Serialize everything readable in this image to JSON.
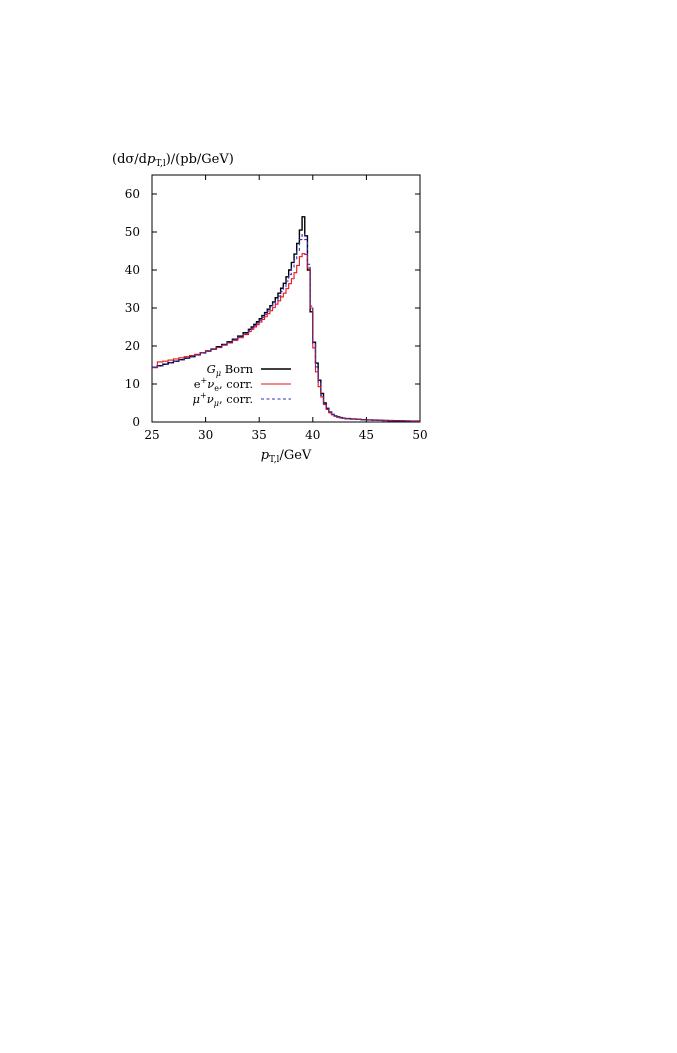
{
  "chart_data": {
    "type": "line",
    "title": "",
    "ylabel": {
      "base": "(dσ/d",
      "var": "p",
      "sub": "T,l",
      "tail": ")/(pb/GeV)"
    },
    "xlabel": {
      "var": "p",
      "sub": "T,l",
      "tail": "/GeV"
    },
    "xlim": [
      25,
      50
    ],
    "ylim": [
      0,
      65
    ],
    "x_ticks": [
      25,
      30,
      35,
      40,
      45,
      50
    ],
    "y_ticks": [
      0,
      10,
      20,
      30,
      40,
      50,
      60
    ],
    "grid": false,
    "legend_position": "lower-left",
    "bin_edges": [
      25.0,
      25.5,
      26.0,
      26.5,
      27.0,
      27.5,
      28.0,
      28.5,
      29.0,
      29.5,
      30.0,
      30.5,
      31.0,
      31.5,
      32.0,
      32.5,
      33.0,
      33.5,
      34.0,
      34.25,
      34.5,
      34.75,
      35.0,
      35.25,
      35.5,
      35.75,
      36.0,
      36.25,
      36.5,
      36.75,
      37.0,
      37.25,
      37.5,
      37.75,
      38.0,
      38.25,
      38.5,
      38.75,
      39.0,
      39.25,
      39.5,
      39.75,
      40.0,
      40.25,
      40.5,
      40.75,
      41.0,
      41.25,
      41.5,
      41.75,
      42.0,
      42.25,
      42.5,
      42.75,
      43.0,
      43.5,
      44.0,
      44.5,
      45.0,
      45.5,
      46.0,
      46.5,
      47.0,
      47.5,
      48.0,
      48.5,
      49.0,
      49.5,
      50.0
    ],
    "series": [
      {
        "legend": {
          "var": "G",
          "sub": "μ",
          "tail": " Born"
        },
        "color": "#000000",
        "dash": "solid",
        "values": [
          14.4,
          14.8,
          15.2,
          15.6,
          16.0,
          16.4,
          16.8,
          17.2,
          17.7,
          18.2,
          18.7,
          19.2,
          19.8,
          20.4,
          21.1,
          21.8,
          22.6,
          23.5,
          24.4,
          25.0,
          25.7,
          26.4,
          27.2,
          28.0,
          28.8,
          29.7,
          30.6,
          31.6,
          32.7,
          33.9,
          35.2,
          36.5,
          38.2,
          40.0,
          42.0,
          44.2,
          47.0,
          50.5,
          54.0,
          49.0,
          40.0,
          29.0,
          21.0,
          15.5,
          11.0,
          7.5,
          5.0,
          3.6,
          2.6,
          2.0,
          1.6,
          1.35,
          1.15,
          1.0,
          0.9,
          0.8,
          0.7,
          0.62,
          0.55,
          0.5,
          0.45,
          0.4,
          0.36,
          0.33,
          0.3,
          0.27,
          0.25,
          0.23
        ]
      },
      {
        "legend": {
          "var": "",
          "pre": "e",
          "sup": "+",
          "nu": "ν",
          "sub": "e",
          "tail": ", corr."
        },
        "color": "#e8131b",
        "dash": "solid",
        "values": [
          14.3,
          15.8,
          16.0,
          16.3,
          16.6,
          16.9,
          17.2,
          17.5,
          17.8,
          18.2,
          18.6,
          19.1,
          19.6,
          20.2,
          20.8,
          21.5,
          22.2,
          23.0,
          23.8,
          24.4,
          25.0,
          25.6,
          26.3,
          27.0,
          27.7,
          28.5,
          29.3,
          30.1,
          31.0,
          31.9,
          32.9,
          33.9,
          35.1,
          36.4,
          37.7,
          39.3,
          41.2,
          43.5,
          44.3,
          44.1,
          40.5,
          30.0,
          19.5,
          13.2,
          9.3,
          6.6,
          4.6,
          3.3,
          2.4,
          1.9,
          1.5,
          1.25,
          1.08,
          0.95,
          0.85,
          0.76,
          0.67,
          0.59,
          0.53,
          0.48,
          0.43,
          0.38,
          0.35,
          0.32,
          0.29,
          0.26,
          0.24,
          0.22
        ]
      },
      {
        "legend": {
          "var": "",
          "pre": "μ",
          "sup": "+",
          "nu": "ν",
          "sub": "μ",
          "tail": ", corr."
        },
        "color": "#2f2fc9",
        "dash": "3,2.5",
        "values": [
          14.35,
          14.75,
          15.15,
          15.55,
          15.95,
          16.35,
          16.75,
          17.15,
          17.6,
          18.1,
          18.6,
          19.1,
          19.7,
          20.3,
          20.95,
          21.65,
          22.4,
          23.25,
          24.1,
          24.7,
          25.35,
          26.05,
          26.8,
          27.55,
          28.35,
          29.2,
          30.1,
          31.05,
          32.05,
          33.15,
          34.35,
          35.6,
          37.1,
          38.8,
          40.6,
          42.6,
          45.0,
          48.0,
          49.5,
          48.0,
          41.5,
          30.5,
          20.5,
          14.5,
          10.2,
          7.0,
          4.8,
          3.45,
          2.5,
          1.95,
          1.55,
          1.3,
          1.12,
          0.98,
          0.88,
          0.78,
          0.69,
          0.61,
          0.54,
          0.49,
          0.44,
          0.39,
          0.35,
          0.32,
          0.29,
          0.26,
          0.24,
          0.22
        ]
      }
    ]
  }
}
